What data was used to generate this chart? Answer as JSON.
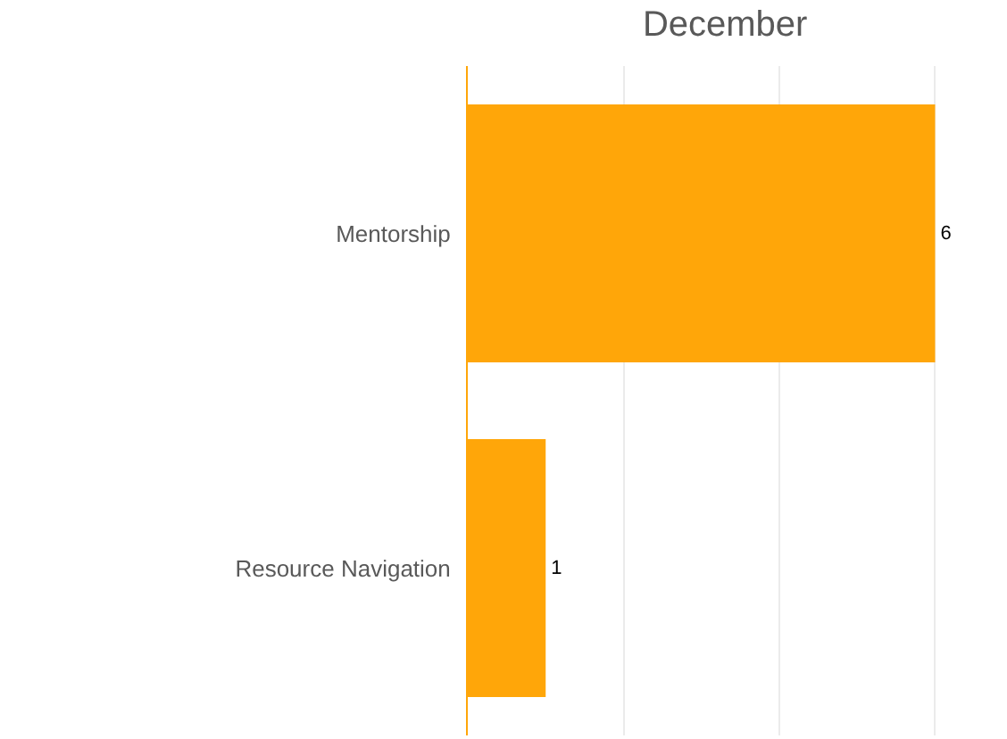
{
  "chart_data": {
    "type": "bar",
    "orientation": "horizontal",
    "title": "December",
    "categories": [
      "Mentorship",
      "Resource Navigation"
    ],
    "values": [
      6,
      1
    ],
    "color": "#ffa609",
    "data_labels": true,
    "xlim": [
      0,
      6.9
    ],
    "xticks": [
      {
        "value": 0,
        "label": null
      },
      {
        "value": 2,
        "label": null
      },
      {
        "value": 4,
        "label": null
      },
      {
        "value": 6,
        "label": null
      }
    ],
    "grid": "x",
    "tick_labels": "y"
  }
}
